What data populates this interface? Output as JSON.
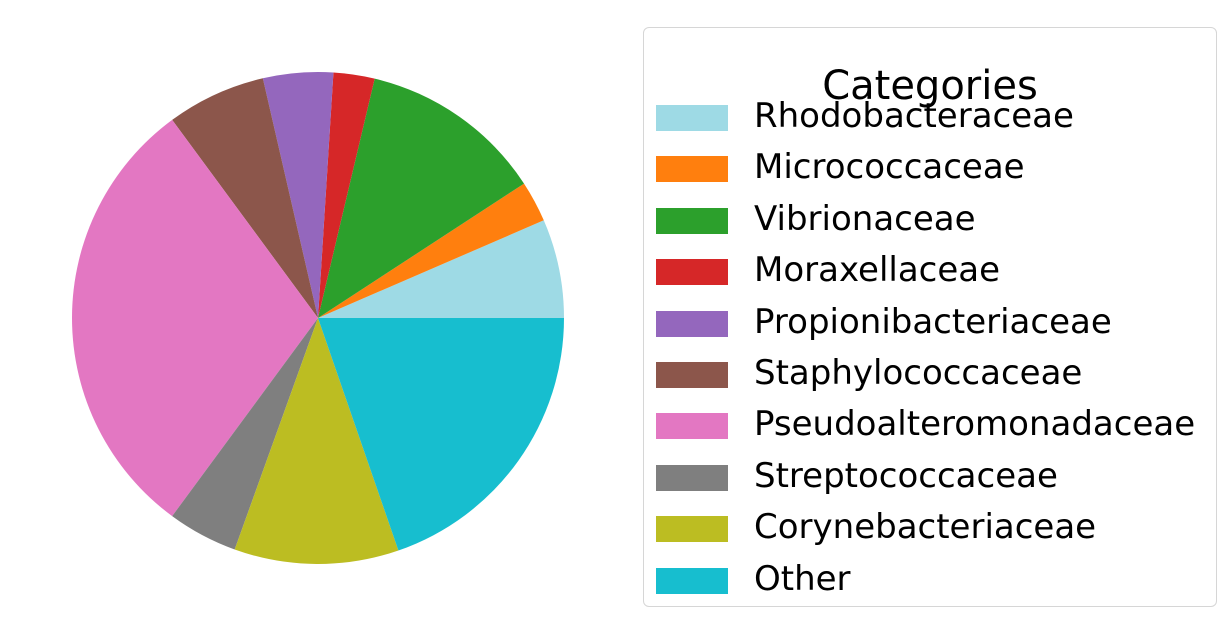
{
  "chart_data": {
    "type": "pie",
    "title": "",
    "legend_title": "Categories",
    "legend_position": "right",
    "start_angle_deg": 0,
    "direction": "counterclockwise",
    "categories": [
      "Rhodobacteraceae",
      "Micrococcaceae",
      "Vibrionaceae",
      "Moraxellaceae",
      "Propionibacteriaceae",
      "Staphylococcaceae",
      "Pseudoalteromonadaceae",
      "Streptococcaceae",
      "Corynebacteriaceae",
      "Other"
    ],
    "values": [
      6.5,
      2.7,
      12.1,
      2.7,
      4.6,
      6.5,
      29.8,
      4.6,
      10.8,
      19.7
    ],
    "colors": [
      "#9edae5",
      "#ff7f0e",
      "#2ca02c",
      "#d62728",
      "#9467bd",
      "#8c564b",
      "#e377c2",
      "#7f7f7f",
      "#bcbd22",
      "#17becf"
    ]
  }
}
